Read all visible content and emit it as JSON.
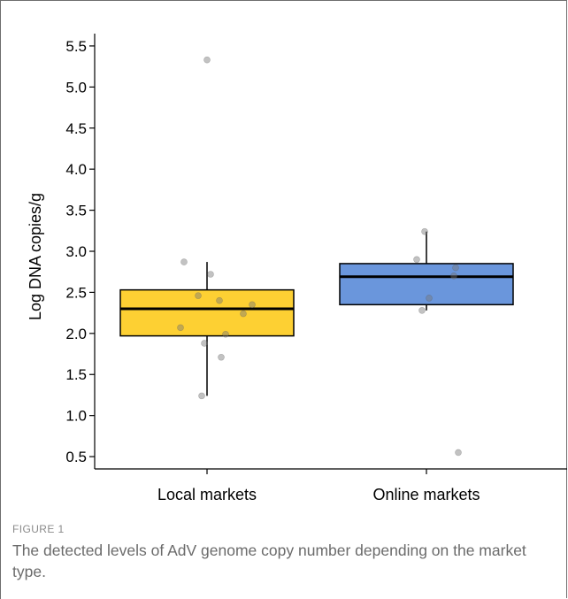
{
  "figure": {
    "label": "FIGURE 1",
    "caption": "The detected levels of AdV genome copy number depending on the market type."
  },
  "chart_data": {
    "type": "box",
    "ylabel": "Log DNA copies/g",
    "ylim": [
      0.35,
      5.65
    ],
    "yticks": [
      0.5,
      1.0,
      1.5,
      2.0,
      2.5,
      3.0,
      3.5,
      4.0,
      4.5,
      5.0,
      5.5
    ],
    "ytick_labels": [
      "0.5",
      "1.0",
      "1.5",
      "2.0",
      "2.5",
      "3.0",
      "3.5",
      "4.0",
      "4.5",
      "5.0",
      "5.5"
    ],
    "categories": [
      "Local markets",
      "Online markets"
    ],
    "colors": [
      "#fdd033",
      "#6a96dc"
    ],
    "boxes": [
      {
        "category": "Local markets",
        "q1": 1.97,
        "median": 2.3,
        "q3": 2.53,
        "whisker_low": 1.24,
        "whisker_high": 2.87
      },
      {
        "category": "Online markets",
        "q1": 2.35,
        "median": 2.69,
        "q3": 2.85,
        "whisker_low": 2.28,
        "whisker_high": 3.24
      }
    ],
    "points": [
      {
        "category": "Local markets",
        "values": [
          5.33,
          2.87,
          2.72,
          2.46,
          2.4,
          2.35,
          2.24,
          2.07,
          1.99,
          1.88,
          1.71,
          1.24
        ],
        "jitter": [
          0.0,
          -0.26,
          0.04,
          -0.1,
          0.14,
          0.51,
          0.41,
          -0.3,
          0.21,
          -0.03,
          0.16,
          -0.06
        ]
      },
      {
        "category": "Online markets",
        "values": [
          3.24,
          2.9,
          2.8,
          2.7,
          2.43,
          2.28,
          0.55
        ],
        "jitter": [
          -0.02,
          -0.11,
          0.33,
          0.31,
          0.03,
          -0.05,
          0.36
        ]
      }
    ],
    "grid": false,
    "legend": "none"
  }
}
